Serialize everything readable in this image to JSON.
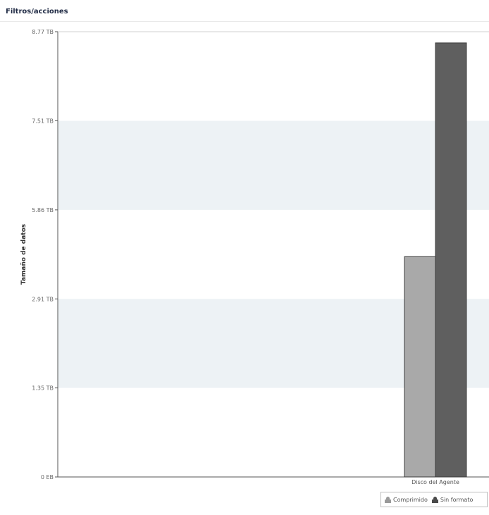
{
  "header": {
    "title": "Filtros/acciones"
  },
  "colors": {
    "band": "#edf2f5",
    "series_compressed": "#a9a9a9",
    "series_raw": "#5f5f5f",
    "axis": "#555555"
  },
  "legend": {
    "items": [
      {
        "label": "Comprimido",
        "icon": "user-icon",
        "color": "#a9a9a9"
      },
      {
        "label": "Sin formato",
        "icon": "user-icon",
        "color": "#5f5f5f"
      }
    ]
  },
  "chart_data": {
    "type": "bar",
    "title": "",
    "xlabel": "",
    "ylabel": "Tamaño de datos",
    "categories": [
      "Disco del Agente"
    ],
    "series": [
      {
        "name": "Comprimido",
        "values": [
          2.36
        ]
      },
      {
        "name": "Sin formato",
        "values": [
          4.65
        ]
      }
    ],
    "ylim": [
      0,
      4.77
    ],
    "yticks": [
      {
        "value": 0,
        "label": "0 EB"
      },
      {
        "value": 0.9538,
        "label": "1.35 TB"
      },
      {
        "value": 1.9076,
        "label": "2.91 TB"
      },
      {
        "value": 2.8614,
        "label": "5.86 TB"
      },
      {
        "value": 3.8152,
        "label": "7.51 TB"
      },
      {
        "value": 4.77,
        "label": "8.77 TB"
      }
    ],
    "grid": "alternating bands",
    "legend_position": "bottom-right"
  }
}
